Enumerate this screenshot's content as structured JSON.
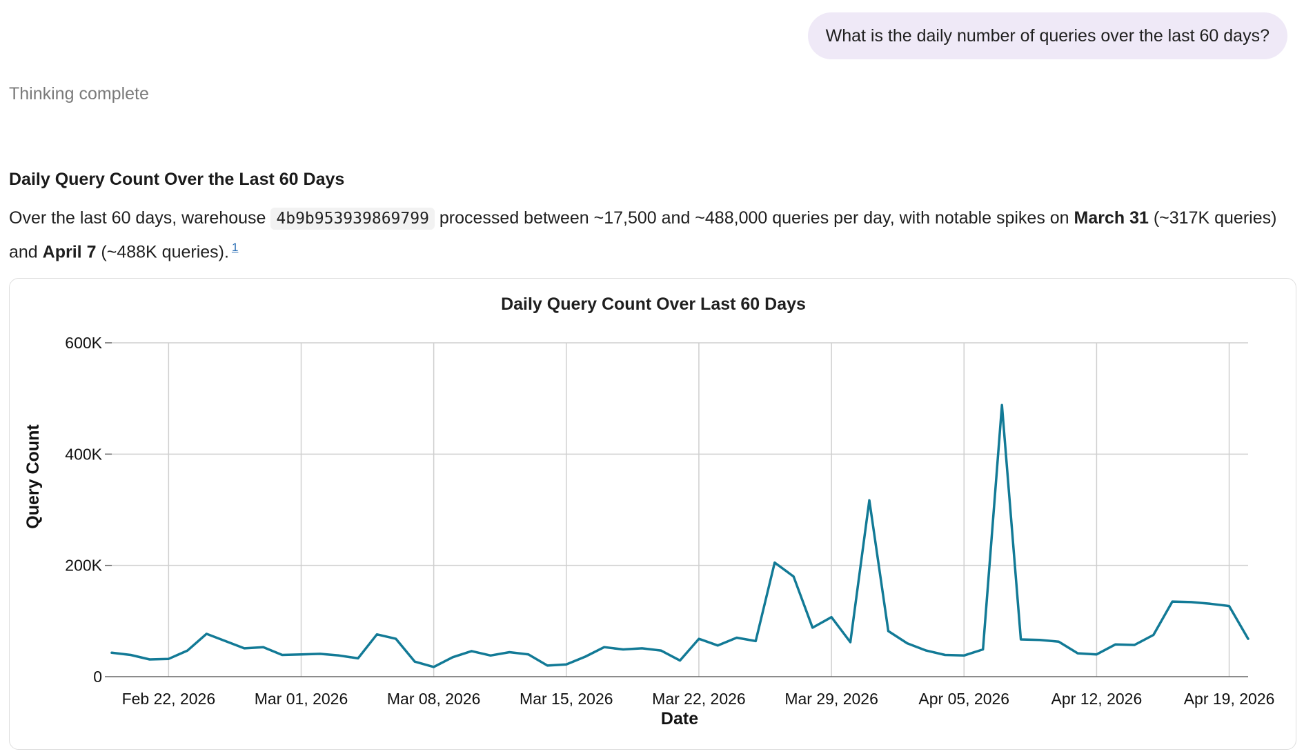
{
  "conversation": {
    "user_message": "What is the daily number of queries over the last 60 days?",
    "thinking_status": "Thinking complete"
  },
  "answer": {
    "heading": "Daily Query Count Over the Last 60 Days",
    "text_1": "Over the last 60 days, warehouse ",
    "warehouse_id": "4b9b953939869799",
    "text_2": " processed between ~17,500 and ~488,000 queries per day, with notable spikes on ",
    "spike_1_date": "March 31",
    "text_3": " (~317K queries) and ",
    "spike_2_date": "April 7",
    "text_4": " (~488K queries).",
    "footnote": "1"
  },
  "colors": {
    "line": "#127a96",
    "grid": "#cfcfcf",
    "user_bubble": "#efe9f7"
  },
  "chart_data": {
    "type": "line",
    "title": "Daily Query Count Over Last 60 Days",
    "xlabel": "Date",
    "ylabel": "Query Count",
    "ylim": [
      0,
      600000
    ],
    "yticks": [
      0,
      200000,
      400000,
      600000
    ],
    "ytick_labels": [
      "0",
      "200K",
      "400K",
      "600K"
    ],
    "xlim": [
      "2026-02-19",
      "2026-04-20"
    ],
    "xticks": [
      "2026-02-22",
      "2026-03-01",
      "2026-03-08",
      "2026-03-15",
      "2026-03-22",
      "2026-03-29",
      "2026-04-05",
      "2026-04-12",
      "2026-04-19"
    ],
    "xtick_labels": [
      "Feb 22, 2026",
      "Mar 01, 2026",
      "Mar 08, 2026",
      "Mar 15, 2026",
      "Mar 22, 2026",
      "Mar 29, 2026",
      "Apr 05, 2026",
      "Apr 12, 2026",
      "Apr 19, 2026"
    ],
    "grid": true,
    "x": [
      "2026-02-19",
      "2026-02-20",
      "2026-02-21",
      "2026-02-22",
      "2026-02-23",
      "2026-02-24",
      "2026-02-25",
      "2026-02-26",
      "2026-02-27",
      "2026-02-28",
      "2026-03-01",
      "2026-03-02",
      "2026-03-03",
      "2026-03-04",
      "2026-03-05",
      "2026-03-06",
      "2026-03-07",
      "2026-03-08",
      "2026-03-09",
      "2026-03-10",
      "2026-03-11",
      "2026-03-12",
      "2026-03-13",
      "2026-03-14",
      "2026-03-15",
      "2026-03-16",
      "2026-03-17",
      "2026-03-18",
      "2026-03-19",
      "2026-03-20",
      "2026-03-21",
      "2026-03-22",
      "2026-03-23",
      "2026-03-24",
      "2026-03-25",
      "2026-03-26",
      "2026-03-27",
      "2026-03-28",
      "2026-03-29",
      "2026-03-30",
      "2026-03-31",
      "2026-04-01",
      "2026-04-02",
      "2026-04-03",
      "2026-04-04",
      "2026-04-05",
      "2026-04-06",
      "2026-04-07",
      "2026-04-08",
      "2026-04-09",
      "2026-04-10",
      "2026-04-11",
      "2026-04-12",
      "2026-04-13",
      "2026-04-14",
      "2026-04-15",
      "2026-04-16",
      "2026-04-17",
      "2026-04-18",
      "2026-04-19",
      "2026-04-20"
    ],
    "series": [
      {
        "values": [
          43000,
          39000,
          31000,
          32000,
          47000,
          77000,
          64000,
          51000,
          53000,
          39000,
          40000,
          41000,
          38000,
          33000,
          76000,
          68000,
          27000,
          17500,
          35000,
          46000,
          38000,
          44000,
          40000,
          20000,
          22000,
          36000,
          53000,
          49000,
          51000,
          47000,
          29000,
          68000,
          56000,
          70000,
          64000,
          205000,
          180000,
          88000,
          107000,
          62000,
          317000,
          82000,
          60000,
          47000,
          39000,
          38000,
          49000,
          488000,
          67000,
          66000,
          63000,
          42000,
          40000,
          58000,
          57000,
          75000,
          135000,
          134000,
          131000,
          127000,
          68000
        ]
      }
    ]
  }
}
